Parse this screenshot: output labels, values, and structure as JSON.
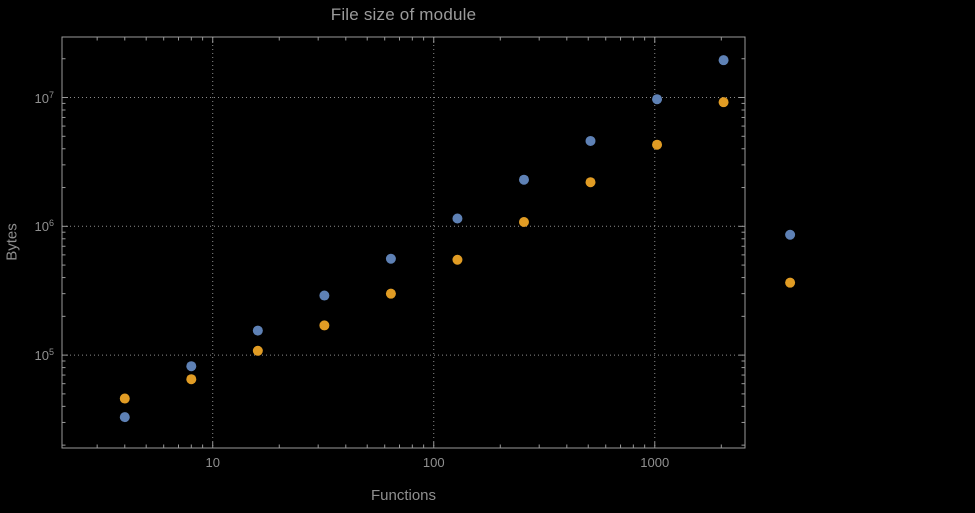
{
  "window": {
    "background": "#000000"
  },
  "chart_data": {
    "type": "scatter",
    "title": "File size of module",
    "xlabel": "Functions",
    "ylabel": "Bytes",
    "x_scale": "log",
    "y_scale": "log",
    "x_range": [
      2.08,
      2560
    ],
    "y_range": [
      19000,
      29500000
    ],
    "grid": "dotted gridlines at major decades",
    "legend": "none",
    "frame": "full frame with inward major and minor log ticks on all four sides",
    "x_major_ticks": [
      {
        "value": 10,
        "label": "10"
      },
      {
        "value": 100,
        "label": "100"
      },
      {
        "value": 1000,
        "label": "1000"
      }
    ],
    "y_major_ticks": [
      {
        "value": 100000,
        "base": "10",
        "exponent": "5"
      },
      {
        "value": 1000000,
        "base": "10",
        "exponent": "6"
      },
      {
        "value": 10000000,
        "base": "10",
        "exponent": "7"
      }
    ],
    "series": [
      {
        "name": "blue",
        "color": "#5e81b5",
        "points": [
          [
            4,
            33000
          ],
          [
            8,
            82000
          ],
          [
            16,
            155000
          ],
          [
            32,
            290000
          ],
          [
            64,
            560000
          ],
          [
            128,
            1150000
          ],
          [
            256,
            2300000
          ],
          [
            512,
            4600000
          ],
          [
            1024,
            9700000
          ],
          [
            2048,
            19500000
          ],
          [
            4096,
            860000
          ]
        ]
      },
      {
        "name": "orange",
        "color": "#e19c24",
        "points": [
          [
            4,
            46000
          ],
          [
            8,
            65000
          ],
          [
            16,
            108000
          ],
          [
            32,
            170000
          ],
          [
            64,
            300000
          ],
          [
            128,
            550000
          ],
          [
            256,
            1080000
          ],
          [
            512,
            2200000
          ],
          [
            1024,
            4300000
          ],
          [
            2048,
            9200000
          ],
          [
            4096,
            365000
          ]
        ]
      }
    ],
    "styles": {
      "background": "#000000",
      "frame_color": "#9a9a9a",
      "grid_color": "#8c8c8c",
      "text_color": "#8f8f8f",
      "title_color": "#9b9b9b",
      "point_radius": 5
    }
  }
}
